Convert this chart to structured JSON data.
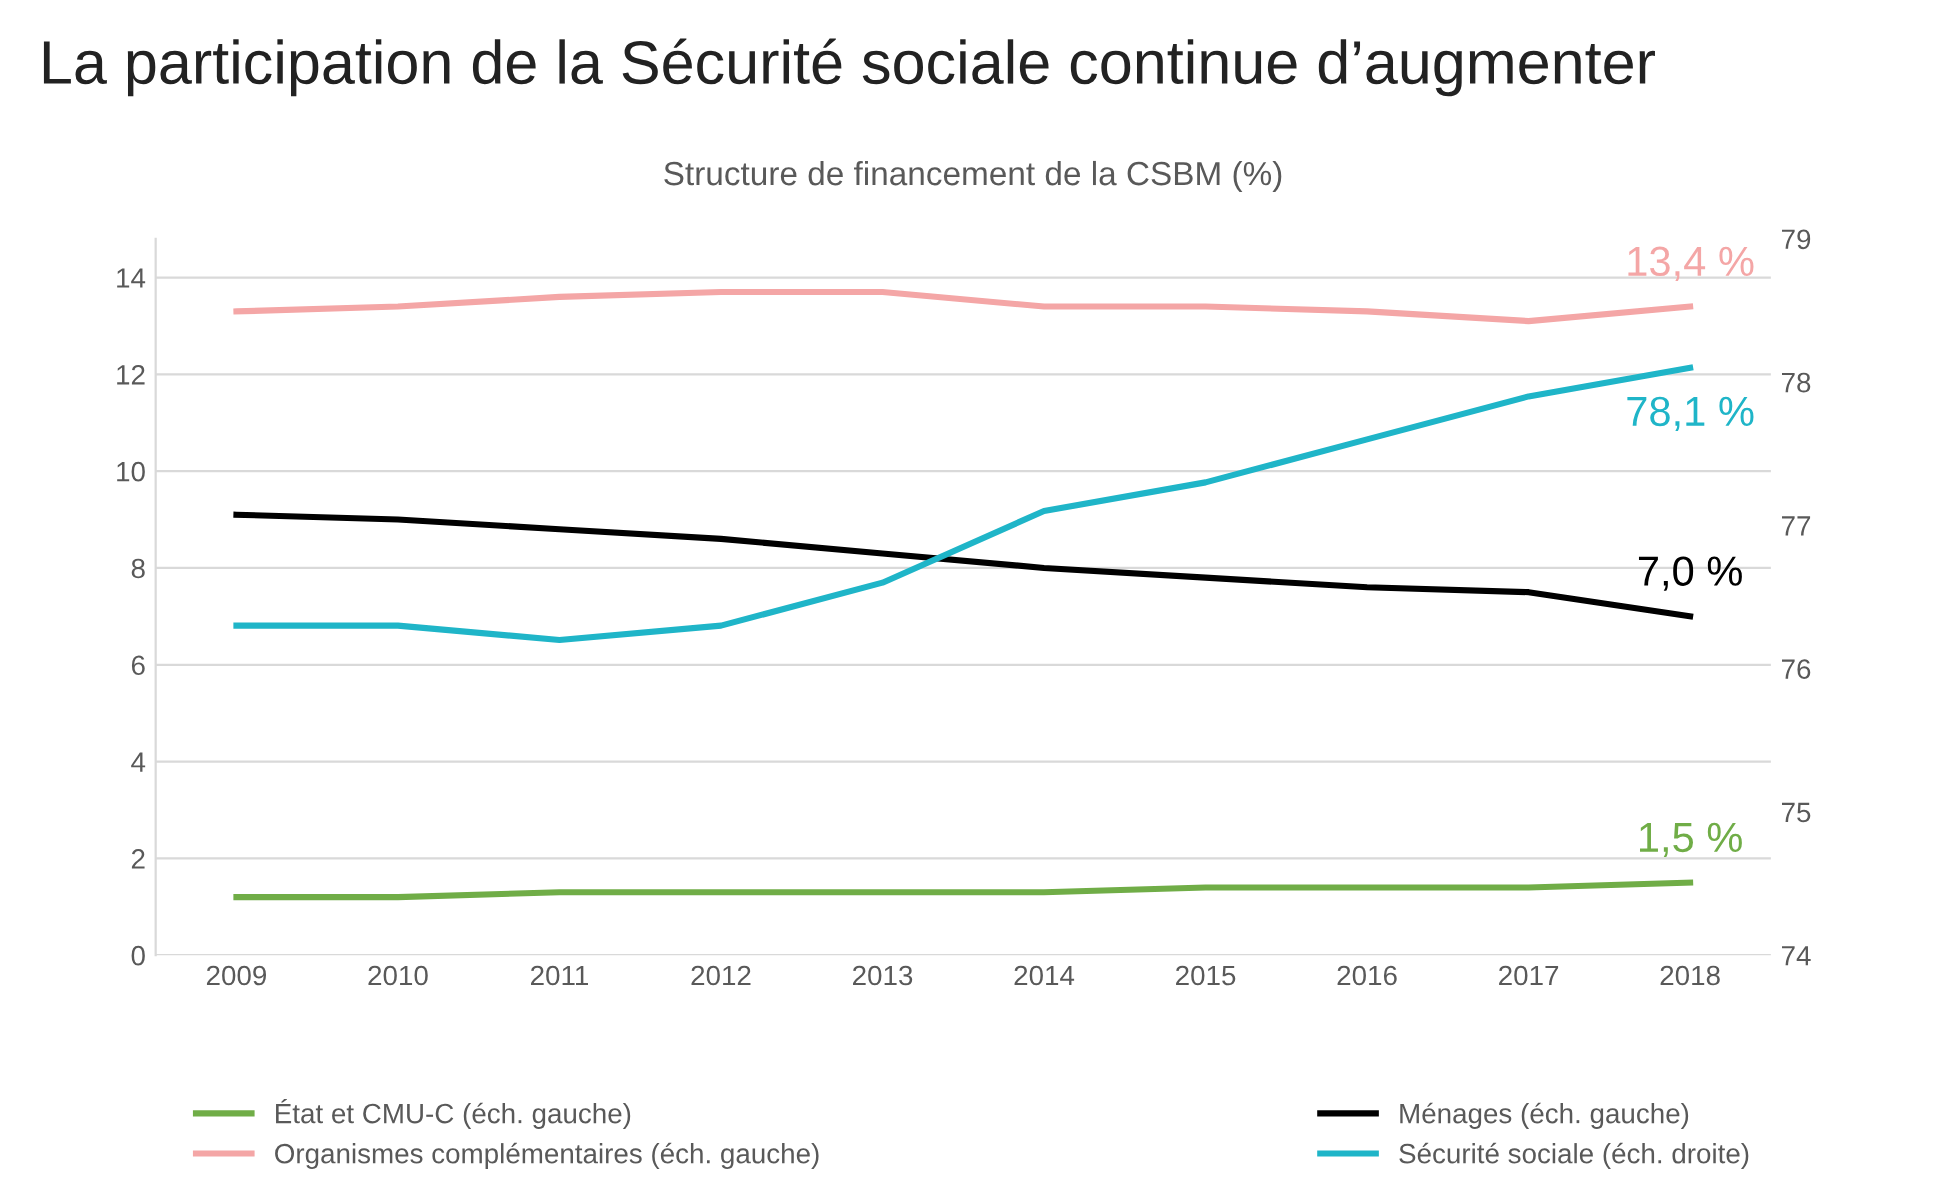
{
  "chart_data": {
    "type": "line",
    "title": "La participation de la Sécurité sociale continue d’augmenter",
    "subtitle": "Structure de financement de la CSBM (%)",
    "categories": [
      "2009",
      "2010",
      "2011",
      "2012",
      "2013",
      "2014",
      "2015",
      "2016",
      "2017",
      "2018"
    ],
    "series": [
      {
        "name": "État et CMU-C (éch. gauche)",
        "color": "#70ad47",
        "values": [
          1.2,
          1.2,
          1.3,
          1.3,
          1.3,
          1.3,
          1.4,
          1.4,
          1.4,
          1.5
        ]
      },
      {
        "name": "Organismes complémentaires (éch. gauche)",
        "color": "#f4a6a6",
        "values": [
          13.3,
          13.4,
          13.6,
          13.7,
          13.7,
          13.4,
          13.4,
          13.3,
          13.1,
          13.4
        ]
      },
      {
        "name": "Ménages (éch. gauche)",
        "color": "#000000",
        "values": [
          9.1,
          9.0,
          8.8,
          8.6,
          8.3,
          8.0,
          7.8,
          7.6,
          7.5,
          7.0
        ]
      },
      {
        "name": "Sécurité sociale (éch. droite)",
        "color": "#1fb5c8",
        "axis": "y2",
        "values": [
          76.3,
          76.3,
          76.2,
          76.3,
          76.6,
          77.1,
          77.3,
          77.6,
          77.9,
          78.1
        ]
      }
    ],
    "ylim": [
      0,
      14.8
    ],
    "yticks": [
      0,
      2,
      4,
      6,
      8,
      10,
      12,
      14
    ],
    "y2lim": [
      74,
      79
    ],
    "y2ticks": [
      74,
      75,
      76,
      77,
      78,
      79
    ],
    "annotations": [
      {
        "text": "1,5 %",
        "x": "2018",
        "y": 1.5
      },
      {
        "text": "13,4 %",
        "x": "2018",
        "y": 13.4
      },
      {
        "text": "7,0 %",
        "x": "2018",
        "y": 7.0
      },
      "78,1 %"
    ],
    "grid": "y",
    "legend": "bottom",
    "marker": "none",
    "line_style": "solid"
  }
}
